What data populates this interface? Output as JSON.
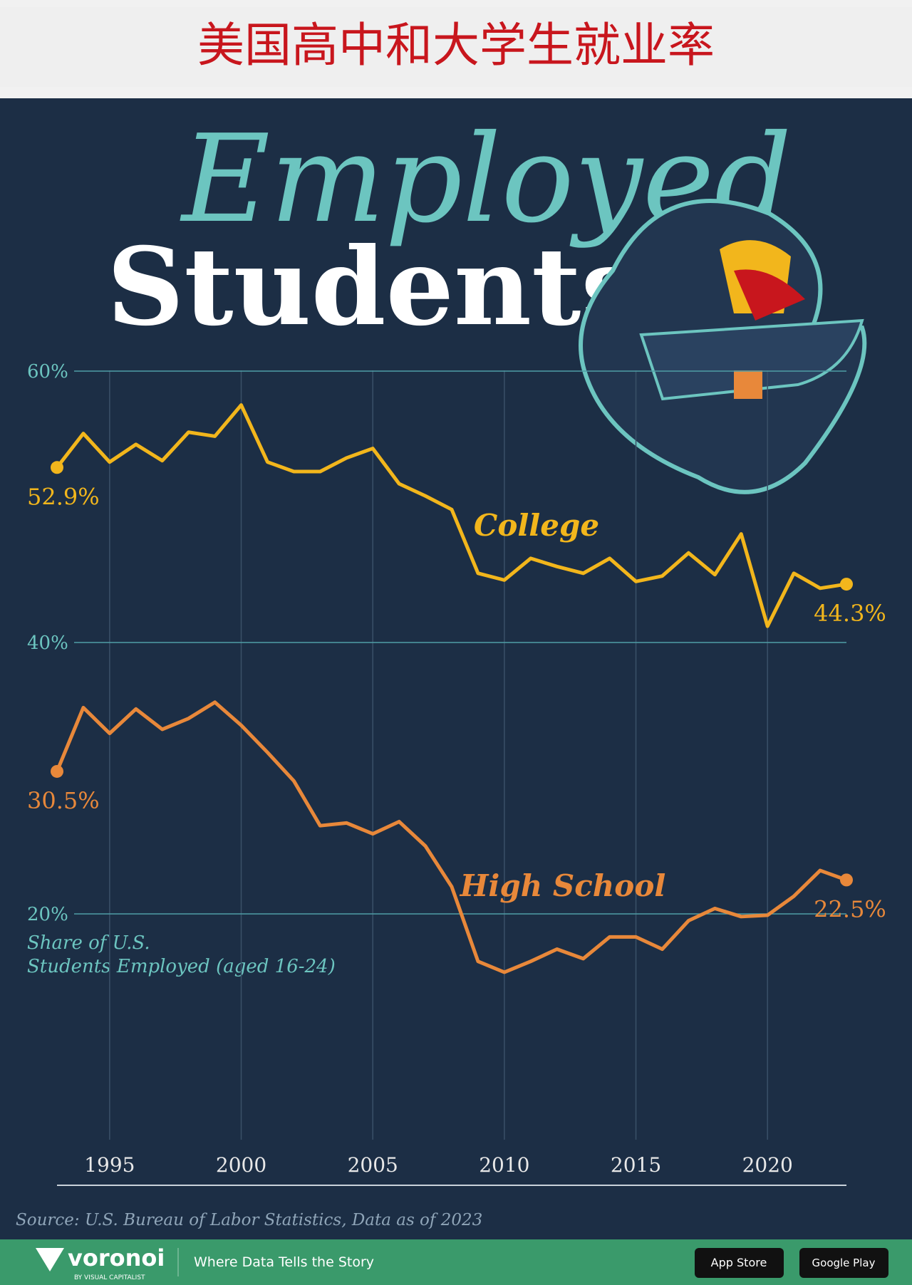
{
  "header": {
    "title": "美国高中和大学生就业率"
  },
  "chart_data": {
    "type": "line",
    "title": "Employed",
    "subtitle": "Students",
    "y_label": "Share of U.S. Students Employed (aged 16-24)",
    "source": "Source: U.S. Bureau of Labor Statistics, Data as of 2023",
    "x": [
      1993,
      1994,
      1995,
      1996,
      1997,
      1998,
      1999,
      2000,
      2001,
      2002,
      2003,
      2004,
      2005,
      2006,
      2007,
      2008,
      2009,
      2010,
      2011,
      2012,
      2013,
      2014,
      2015,
      2016,
      2017,
      2018,
      2019,
      2020,
      2021,
      2022,
      2023
    ],
    "xlim": [
      1993,
      2023
    ],
    "xticks": [
      1995,
      2000,
      2005,
      2010,
      2015,
      2020
    ],
    "ylim": [
      0,
      80
    ],
    "yticks": [
      {
        "value": 20,
        "label": "20%"
      },
      {
        "value": 40,
        "label": "40%"
      },
      {
        "value": 60,
        "label": "60%"
      }
    ],
    "grid": true,
    "series": [
      {
        "name": "College",
        "color": "#f2b61c",
        "values": [
          52.9,
          55.4,
          53.3,
          54.6,
          53.4,
          55.5,
          55.2,
          57.5,
          53.3,
          52.6,
          52.6,
          53.6,
          54.3,
          51.7,
          50.8,
          49.8,
          45.1,
          44.6,
          46.2,
          45.6,
          45.1,
          46.2,
          44.5,
          44.9,
          46.6,
          45.0,
          48.0,
          41.2,
          45.1,
          44.0,
          44.3
        ],
        "value_labels": [
          "52.9%",
          null,
          null,
          null,
          null,
          null,
          null,
          null,
          null,
          null,
          null,
          null,
          null,
          null,
          null,
          null,
          null,
          null,
          null,
          null,
          null,
          null,
          null,
          null,
          null,
          null,
          null,
          null,
          null,
          null,
          "44.3%"
        ]
      },
      {
        "name": "High School",
        "color": "#e8883a",
        "values": [
          30.5,
          35.2,
          33.3,
          35.1,
          33.6,
          34.4,
          35.6,
          33.9,
          31.9,
          29.8,
          26.5,
          26.7,
          25.9,
          26.8,
          25.0,
          22.0,
          16.5,
          15.7,
          16.5,
          17.4,
          16.7,
          18.3,
          18.3,
          17.4,
          19.5,
          20.4,
          19.8,
          19.9,
          21.3,
          23.2,
          22.5
        ],
        "value_labels": [
          "30.5%",
          null,
          null,
          null,
          null,
          null,
          null,
          null,
          null,
          null,
          null,
          null,
          null,
          null,
          null,
          null,
          null,
          null,
          null,
          null,
          null,
          null,
          null,
          null,
          null,
          null,
          null,
          null,
          null,
          null,
          "22.5%"
        ]
      }
    ]
  },
  "footer": {
    "brand": "voronoi",
    "brand_sub": "BY VISUAL CAPITALIST",
    "tagline": "Where Data Tells the Story",
    "app_store": "App Store",
    "google_play": "Google Play"
  }
}
